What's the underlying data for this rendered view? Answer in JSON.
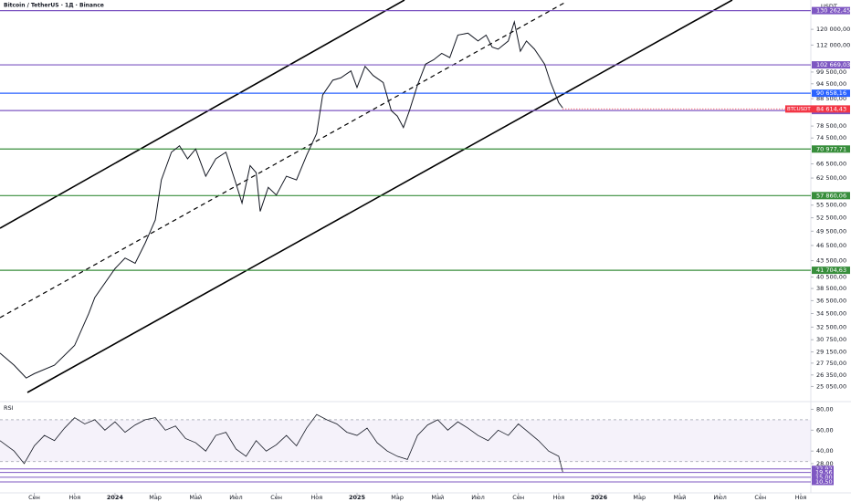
{
  "chart_data": {
    "type": "line",
    "title": "Bitcoin / TetherUS · 1Д · Binance",
    "unit": "USDT",
    "log_scale": true,
    "color": "#131722",
    "xlim": [
      6.3,
      46.5
    ],
    "xticks": [
      {
        "value": 8,
        "label": "Сен"
      },
      {
        "value": 10,
        "label": "Ноя"
      },
      {
        "value": 12,
        "label": "2024"
      },
      {
        "value": 14,
        "label": "Мар"
      },
      {
        "value": 16,
        "label": "Май"
      },
      {
        "value": 18,
        "label": "Июл"
      },
      {
        "value": 20,
        "label": "Сен"
      },
      {
        "value": 22,
        "label": "Ноя"
      },
      {
        "value": 24,
        "label": "2025"
      },
      {
        "value": 26,
        "label": "Мар"
      },
      {
        "value": 28,
        "label": "Май"
      },
      {
        "value": 30,
        "label": "Июл"
      },
      {
        "value": 32,
        "label": "Сен"
      },
      {
        "value": 34,
        "label": "Ноя"
      },
      {
        "value": 36,
        "label": "2026"
      },
      {
        "value": 38,
        "label": "Мар"
      },
      {
        "value": 40,
        "label": "Май"
      },
      {
        "value": 42,
        "label": "Июл"
      },
      {
        "value": 44,
        "label": "Сен"
      },
      {
        "value": 46,
        "label": "Ноя"
      }
    ],
    "ylim": [
      24400,
      128000
    ],
    "yticks": [
      {
        "value": 25050,
        "label": "25 050,00"
      },
      {
        "value": 26350,
        "label": "26 350,00"
      },
      {
        "value": 27750,
        "label": "27 750,00"
      },
      {
        "value": 29150,
        "label": "29 150,00"
      },
      {
        "value": 30750,
        "label": "30 750,00"
      },
      {
        "value": 32500,
        "label": "32 500,00"
      },
      {
        "value": 34500,
        "label": "34 500,00"
      },
      {
        "value": 36500,
        "label": "36 500,00"
      },
      {
        "value": 38500,
        "label": "38 500,00"
      },
      {
        "value": 40500,
        "label": "40 500,00"
      },
      {
        "value": 43500,
        "label": "43 500,00"
      },
      {
        "value": 46500,
        "label": "46 500,00"
      },
      {
        "value": 49500,
        "label": "49 500,00"
      },
      {
        "value": 52500,
        "label": "52 500,00"
      },
      {
        "value": 55500,
        "label": "55 500,00"
      },
      {
        "value": 62500,
        "label": "62 500,00"
      },
      {
        "value": 66500,
        "label": "66 500,00"
      },
      {
        "value": 74500,
        "label": "74 500,00"
      },
      {
        "value": 78500,
        "label": "78 500,00"
      },
      {
        "value": 88500,
        "label": "88 500,00"
      },
      {
        "value": 94500,
        "label": "94 500,00"
      },
      {
        "value": 99500,
        "label": "99 500,00"
      },
      {
        "value": 112000,
        "label": "112 000,00"
      },
      {
        "value": 120000,
        "label": "120 000,00"
      }
    ],
    "x": [
      6.3,
      7,
      7.6,
      8,
      9,
      10,
      10.7,
      11,
      12,
      12.5,
      13,
      13.5,
      14,
      14.3,
      14.8,
      15.2,
      15.6,
      16,
      16.5,
      17,
      17.5,
      18,
      18.3,
      18.7,
      19,
      19.2,
      19.6,
      20,
      20.5,
      21,
      21.5,
      22,
      22.3,
      22.8,
      23.2,
      23.7,
      24,
      24.4,
      24.8,
      25.3,
      25.7,
      26,
      26.3,
      26.6,
      27,
      27.4,
      27.8,
      28.2,
      28.6,
      29,
      29.5,
      30,
      30.4,
      30.7,
      31,
      31.5,
      31.8,
      32.1,
      32.4,
      32.8,
      33.3,
      33.6,
      34,
      34.2
    ],
    "values": [
      29000,
      27500,
      26000,
      26500,
      27500,
      30000,
      34500,
      37000,
      42000,
      44000,
      43000,
      47000,
      52000,
      62000,
      70000,
      72000,
      68000,
      71000,
      63000,
      68000,
      70000,
      61000,
      56000,
      66000,
      64000,
      54000,
      60000,
      58000,
      63000,
      62000,
      69000,
      76000,
      90000,
      96000,
      97000,
      100000,
      93000,
      102000,
      98000,
      95000,
      84000,
      82000,
      78000,
      84000,
      94000,
      103000,
      105000,
      108000,
      106000,
      117000,
      118000,
      114000,
      117000,
      111000,
      110000,
      114000,
      124000,
      109000,
      114000,
      110000,
      103000,
      95000,
      87000,
      85000
    ],
    "levels": [
      {
        "value": 130262.45,
        "label": "130 262,45",
        "color": "#7e57c2"
      },
      {
        "value": 102669.03,
        "label": "102 669,03",
        "color": "#7e57c2"
      },
      {
        "value": 90658.16,
        "label": "90 658,16",
        "color": "#2962ff"
      },
      {
        "value": 84032.34,
        "label": "84 032,34",
        "color": "#7e57c2"
      },
      {
        "value": 70977.71,
        "label": "70 977,71",
        "color": "#388e3c"
      },
      {
        "value": 57860.06,
        "label": "57 860,06",
        "color": "#388e3c"
      },
      {
        "value": 41704.63,
        "label": "41 704,63",
        "color": "#388e3c"
      }
    ],
    "last_price": {
      "name": "BTCUSDT",
      "value": 84614.43,
      "label": "84 614,43",
      "color": "#f23645"
    },
    "rsi": {
      "name": "RSI",
      "color": "#131722",
      "ylim": [
        0,
        83
      ],
      "yticks": [
        {
          "value": 80,
          "label": "80,00"
        },
        {
          "value": 60,
          "label": "60,00"
        },
        {
          "value": 40,
          "label": "40,00"
        },
        {
          "value": 28,
          "label": "28,00"
        }
      ],
      "band": [
        30,
        70
      ],
      "levels": [
        {
          "value": 22.92,
          "label": "22,92",
          "color": "#7e57c2"
        },
        {
          "value": 19.56,
          "label": "19,56",
          "color": "#7e57c2"
        },
        {
          "value": 15,
          "label": "15,00",
          "color": "#7e57c2"
        },
        {
          "value": 10.5,
          "label": "10,50",
          "color": "#7e57c2"
        }
      ],
      "x": [
        6.3,
        7,
        7.5,
        8,
        8.5,
        9,
        9.5,
        10,
        10.5,
        11,
        11.5,
        12,
        12.5,
        13,
        13.5,
        14,
        14.5,
        15,
        15.5,
        16,
        16.5,
        17,
        17.5,
        18,
        18.5,
        19,
        19.5,
        20,
        20.5,
        21,
        21.5,
        22,
        22.5,
        23,
        23.5,
        24,
        24.5,
        25,
        25.5,
        26,
        26.5,
        27,
        27.5,
        28,
        28.5,
        29,
        29.5,
        30,
        30.5,
        31,
        31.5,
        32,
        32.5,
        33,
        33.5,
        34,
        34.2
      ],
      "values": [
        50,
        40,
        28,
        45,
        55,
        50,
        62,
        72,
        66,
        70,
        60,
        68,
        58,
        65,
        70,
        72,
        60,
        64,
        52,
        48,
        40,
        55,
        58,
        42,
        35,
        50,
        40,
        46,
        55,
        45,
        62,
        75,
        70,
        66,
        58,
        55,
        62,
        48,
        40,
        35,
        32,
        55,
        65,
        70,
        60,
        68,
        62,
        55,
        50,
        60,
        55,
        66,
        58,
        50,
        40,
        35,
        20
      ]
    }
  }
}
